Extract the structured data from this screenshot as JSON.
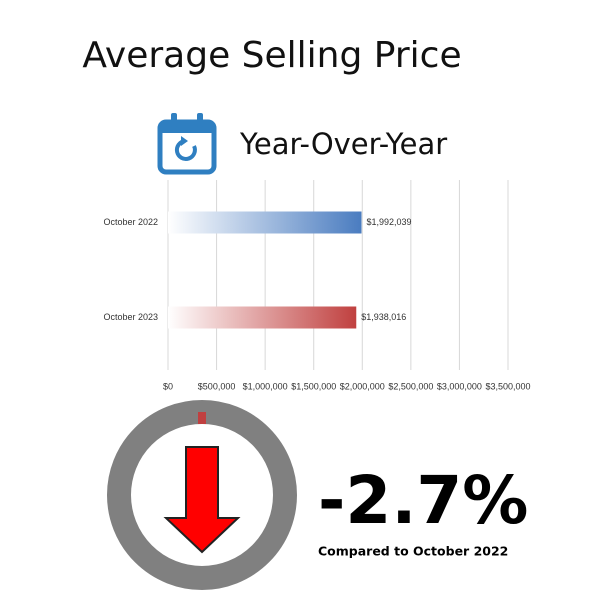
{
  "chart_data": {
    "type": "bar",
    "orientation": "horizontal",
    "title": "Average Selling Price",
    "subtitle": "Year-Over-Year",
    "categories": [
      "October 2022",
      "October 2023"
    ],
    "values": [
      1992039,
      1938016
    ],
    "value_labels": [
      "$1,992,039",
      "$1,938,016"
    ],
    "colors": [
      "#4a7cc0",
      "#c0403f"
    ],
    "xlim": [
      0,
      3500000
    ],
    "xticks": [
      {
        "value": 0,
        "label": "$0"
      },
      {
        "value": 500000,
        "label": "$500,000"
      },
      {
        "value": 1000000,
        "label": "$1,000,000"
      },
      {
        "value": 1500000,
        "label": "$1,500,000"
      },
      {
        "value": 2000000,
        "label": "$2,000,000"
      },
      {
        "value": 2500000,
        "label": "$2,500,000"
      },
      {
        "value": 3000000,
        "label": "$3,000,000"
      },
      {
        "value": 3500000,
        "label": "$3,500,000"
      }
    ],
    "grid": true,
    "change": {
      "value": -2.7,
      "label": "-2.7%"
    },
    "comparison": "Compared to October 2022"
  }
}
